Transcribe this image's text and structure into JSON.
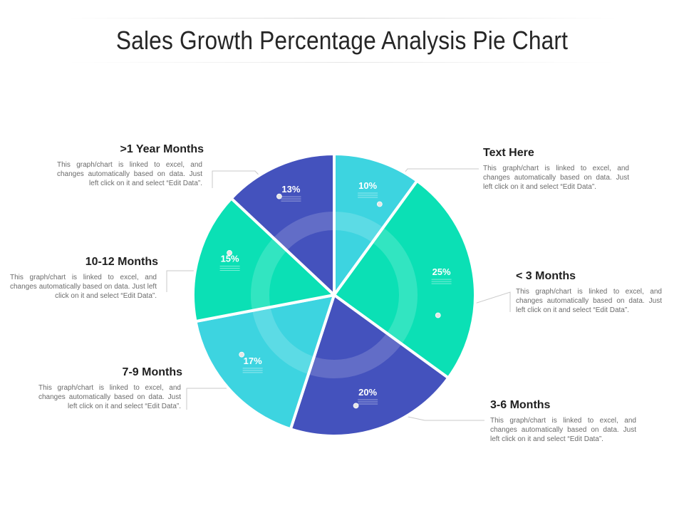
{
  "title": "Sales Growth Percentage Analysis Pie Chart",
  "chart_data": {
    "type": "pie",
    "slices": [
      {
        "label": "Text Here",
        "value": 10,
        "value_label": "10%",
        "color": "#3dd4e0"
      },
      {
        "label": "< 3 Months",
        "value": 25,
        "value_label": "25%",
        "color": "#0be0b5"
      },
      {
        "label": "3-6 Months",
        "value": 20,
        "value_label": "20%",
        "color": "#4452bd"
      },
      {
        "label": "7-9 Months",
        "value": 17,
        "value_label": "17%",
        "color": "#3dd4e0"
      },
      {
        "label": "10-12 Months",
        "value": 15,
        "value_label": "15%",
        "color": "#0be0b5"
      },
      {
        "label": ">1 Year Months",
        "value": 13,
        "value_label": "13%",
        "color": "#4452bd"
      }
    ],
    "description": "This graph/chart is linked to excel, and changes automatically  based on data. Just left click on it and select “Edit Data”.",
    "legend": "none"
  }
}
